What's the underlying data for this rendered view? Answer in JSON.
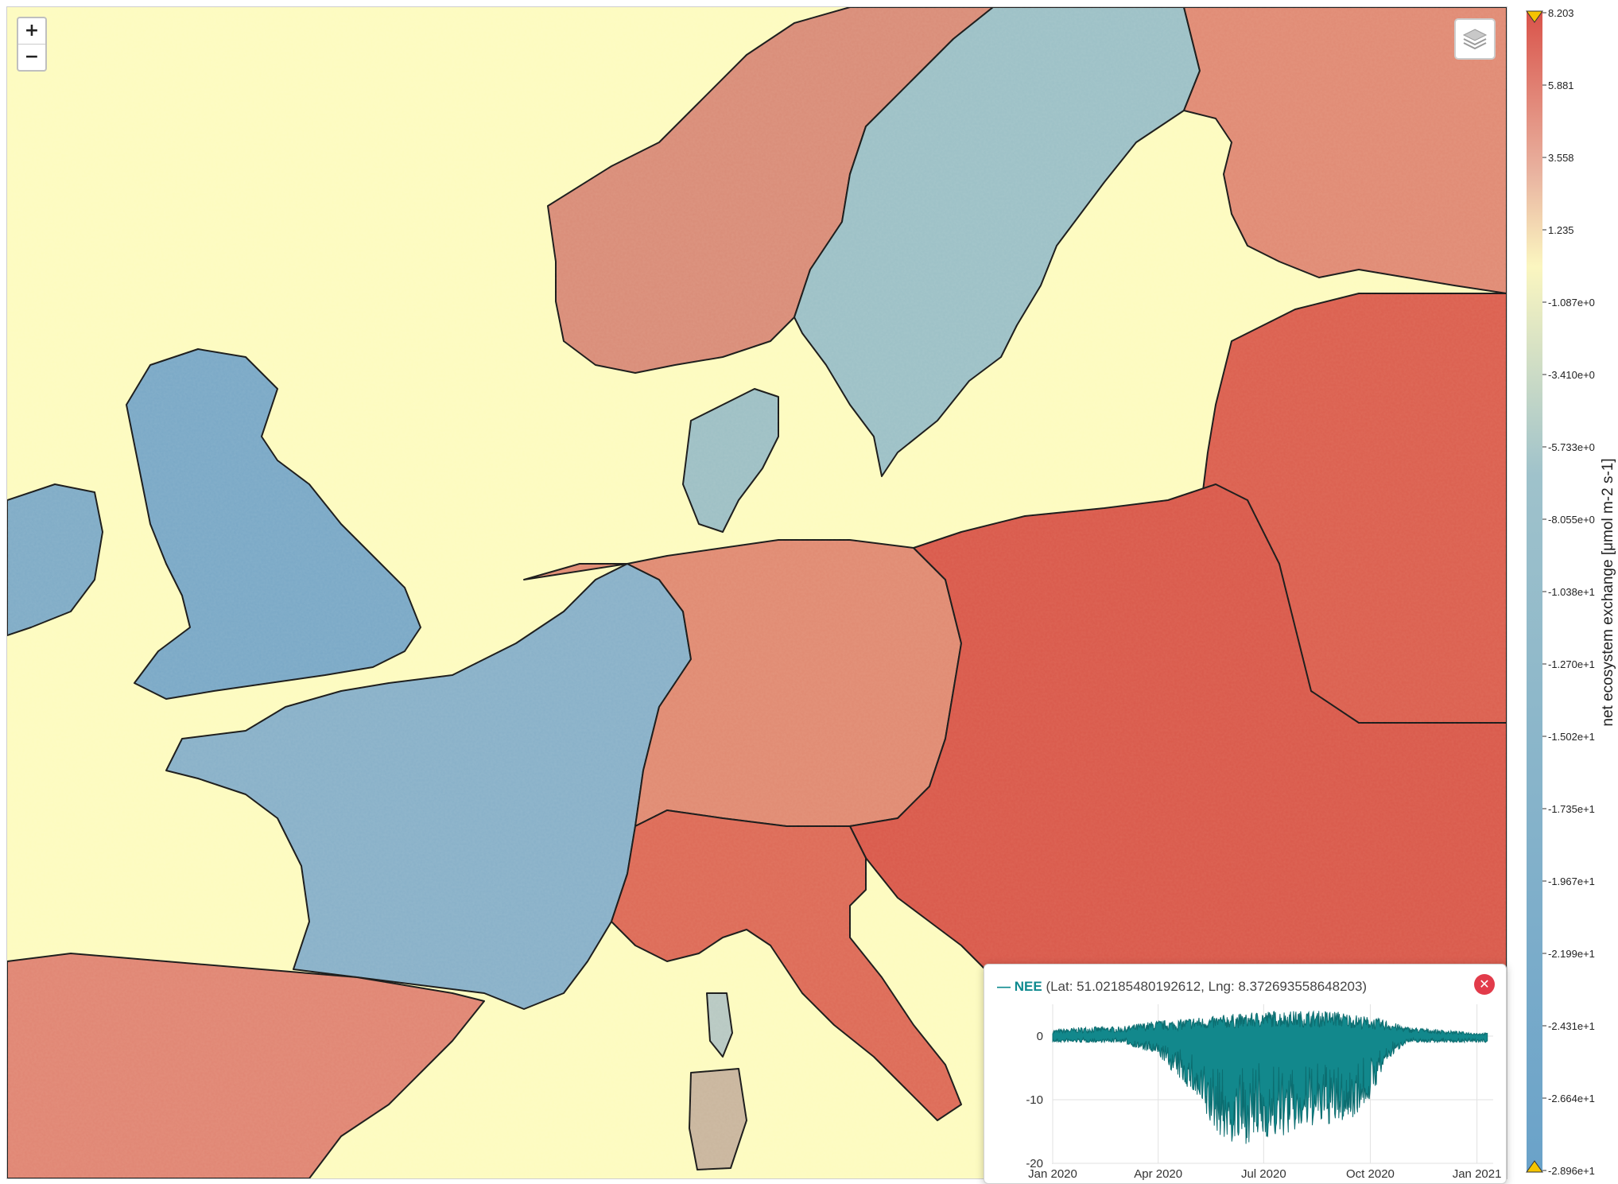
{
  "map": {
    "zoom_in_label": "+",
    "zoom_out_label": "−",
    "layers_icon": "layers-icon"
  },
  "colorbar": {
    "title": "net ecosystem exchange [μmol m-2 s-1]",
    "ticks": [
      "8.203",
      "5.881",
      "3.558",
      "1.235",
      "-1.087e+0",
      "-3.410e+0",
      "-5.733e+0",
      "-8.055e+0",
      "-1.038e+1",
      "-1.270e+1",
      "-1.502e+1",
      "-1.735e+1",
      "-1.967e+1",
      "-2.199e+1",
      "-2.431e+1",
      "-2.664e+1",
      "-2.896e+1"
    ],
    "top_color": "#d9534a",
    "mid_color": "#fbf6c0",
    "bottom_color": "#6aa2c9"
  },
  "popup": {
    "series_name": "NEE",
    "coords": "(Lat: 51.02185480192612, Lng: 8.372693558648203)",
    "close_icon": "close-icon"
  },
  "chart_data": {
    "type": "area",
    "series": [
      {
        "name": "NEE",
        "color": "#12888c"
      }
    ],
    "x_ticks": [
      "Jan 2020",
      "Apr 2020",
      "Jul 2020",
      "Oct 2020",
      "Jan 2021"
    ],
    "y_ticks": [
      "0",
      "-10",
      "-20"
    ],
    "ylim": [
      -20,
      5
    ],
    "xlim": [
      "2020-01-01",
      "2021-01-15"
    ],
    "envelope": {
      "x": [
        "2020-01-01",
        "2020-02-01",
        "2020-03-01",
        "2020-03-15",
        "2020-04-01",
        "2020-04-15",
        "2020-05-01",
        "2020-05-15",
        "2020-06-01",
        "2020-06-15",
        "2020-07-01",
        "2020-07-15",
        "2020-08-01",
        "2020-08-15",
        "2020-09-01",
        "2020-09-15",
        "2020-10-01",
        "2020-10-15",
        "2020-11-01",
        "2020-12-01",
        "2021-01-01",
        "2021-01-10"
      ],
      "upper": [
        1,
        1.5,
        1.5,
        2,
        2.5,
        2.5,
        3,
        3,
        3.5,
        3.5,
        4,
        4,
        4,
        4,
        4,
        3.5,
        3,
        2.5,
        1.5,
        1,
        0.5,
        0.5
      ],
      "lower": [
        -1,
        -1,
        -1,
        -2,
        -3,
        -6,
        -9,
        -14,
        -17,
        -17,
        -16,
        -16,
        -15,
        -14,
        -14,
        -13,
        -10,
        -4,
        -1,
        -1,
        -1,
        -1
      ]
    }
  }
}
